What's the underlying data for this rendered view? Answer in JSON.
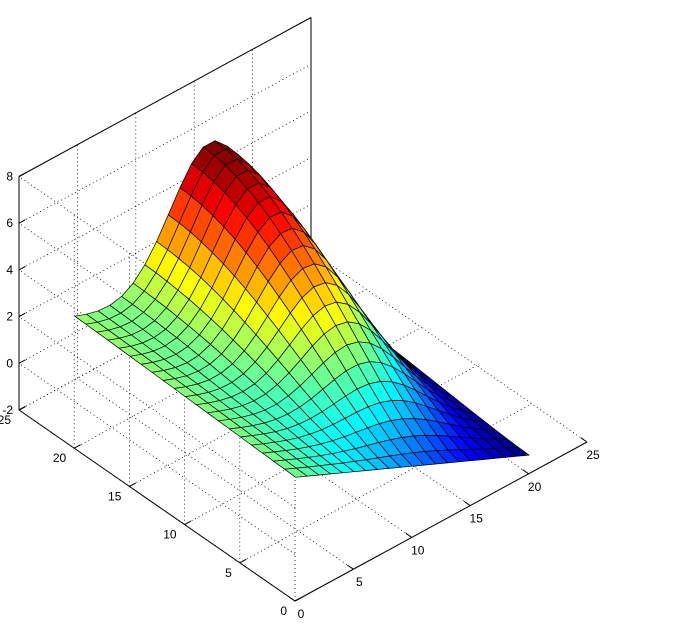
{
  "chart_data": {
    "type": "surface",
    "colormap": "jet",
    "grid": true,
    "x": {
      "label": "",
      "lim": [
        0,
        25
      ],
      "ticks": [
        "0",
        "5",
        "10",
        "15",
        "20",
        "25"
      ]
    },
    "y": {
      "label": "",
      "lim": [
        0,
        25
      ],
      "ticks": [
        "0",
        "5",
        "10",
        "15",
        "20",
        "25"
      ]
    },
    "z": {
      "label": "",
      "lim": [
        -2,
        8
      ],
      "ticks": [
        "-2",
        "0",
        "2",
        "4",
        "6",
        "8"
      ]
    },
    "clim": [
      -1.8,
      7.3
    ],
    "surface": {
      "mesh": [
        21,
        21
      ],
      "x_range": [
        1,
        21
      ],
      "y_range": [
        1,
        21
      ],
      "z_corners": {
        "x1_y1": 2.7,
        "x21_y1": -1.8,
        "x1_y21": 3.0,
        "x21_y21": -2.0
      },
      "z_max": 7.3,
      "z_max_at": {
        "x": 13,
        "y": 21
      }
    }
  }
}
